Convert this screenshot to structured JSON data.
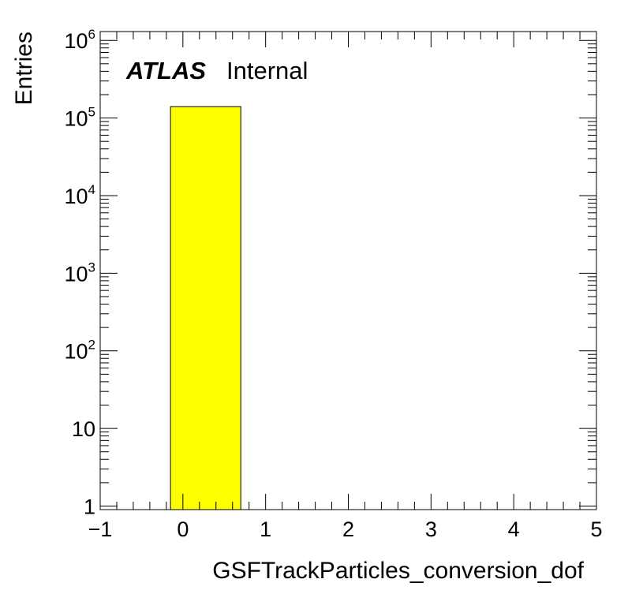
{
  "chart_data": {
    "type": "bar",
    "histogram": true,
    "bins": [
      {
        "x_low": -0.15,
        "x_high": 0.7,
        "value": 140000
      }
    ],
    "x_axis": {
      "label": "GSFTrackParticles_conversion_dof",
      "range": [
        -1,
        5
      ],
      "ticks": [
        {
          "value": -1,
          "label": "−1"
        },
        {
          "value": 0,
          "label": "0"
        },
        {
          "value": 1,
          "label": "1"
        },
        {
          "value": 2,
          "label": "2"
        },
        {
          "value": 3,
          "label": "3"
        },
        {
          "value": 4,
          "label": "4"
        },
        {
          "value": 5,
          "label": "5"
        }
      ]
    },
    "y_axis": {
      "label": "Entries",
      "scale": "log",
      "range": [
        0.9,
        1300000
      ],
      "ticks": [
        {
          "value": 1,
          "base": "1",
          "exp": ""
        },
        {
          "value": 10,
          "base": "10",
          "exp": ""
        },
        {
          "value": 100,
          "base": "10",
          "exp": "2"
        },
        {
          "value": 1000,
          "base": "10",
          "exp": "3"
        },
        {
          "value": 10000,
          "base": "10",
          "exp": "4"
        },
        {
          "value": 100000,
          "base": "10",
          "exp": "5"
        },
        {
          "value": 1000000,
          "base": "10",
          "exp": "6"
        }
      ]
    },
    "annotation": {
      "experiment": "ATLAS",
      "status": "Internal"
    },
    "fill_color": "#ffff00",
    "line_color": "#000000",
    "grid": false,
    "legend": "none"
  }
}
